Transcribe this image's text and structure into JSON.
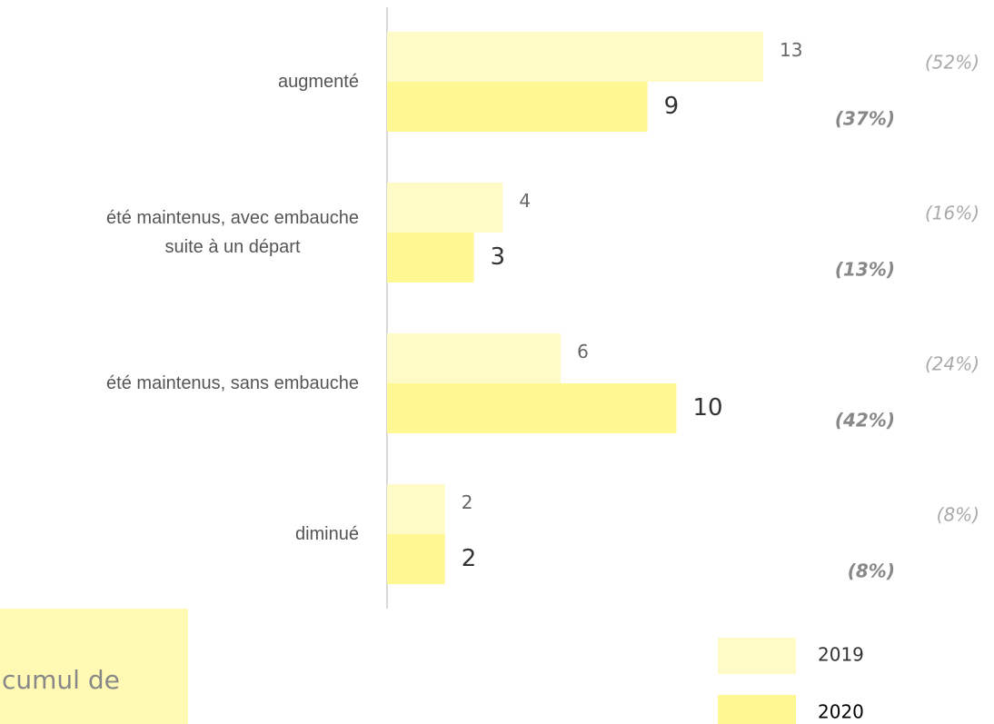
{
  "chart_data": {
    "type": "hbar",
    "categories": [
      "augmenté",
      "été maintenus, avec embauche\nsuite à un départ",
      "été maintenus, sans embauche",
      "diminué"
    ],
    "series": [
      {
        "name": "2019",
        "color": "#fffbc6",
        "values": [
          13,
          4,
          6,
          2
        ],
        "share_labels": [
          "(52%)",
          "(16%)",
          "(24%)",
          "(8%)"
        ]
      },
      {
        "name": "2020",
        "color": "#fff791",
        "values": [
          9,
          3,
          10,
          2
        ],
        "share_labels": [
          "(37%)",
          "(13%)",
          "(42%)",
          "(8%)"
        ]
      }
    ],
    "xlim": [
      0,
      13
    ],
    "annotation": {
      "text": "cumul de",
      "color": "#fff9b3"
    }
  }
}
